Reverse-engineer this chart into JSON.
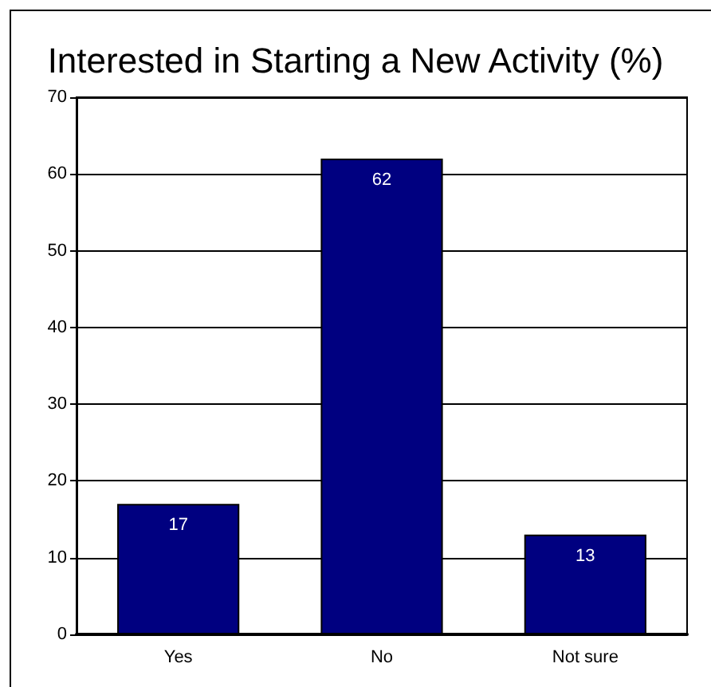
{
  "chart_data": {
    "type": "bar",
    "title": "Interested in Starting a New Activity (%)",
    "categories": [
      "Yes",
      "No",
      "Not sure"
    ],
    "values": [
      17,
      62,
      13
    ],
    "color": "#000080",
    "ylim": [
      0,
      70
    ],
    "yticks": [
      0,
      10,
      20,
      30,
      40,
      50,
      60,
      70
    ],
    "grid": "y",
    "data_labels": true
  }
}
